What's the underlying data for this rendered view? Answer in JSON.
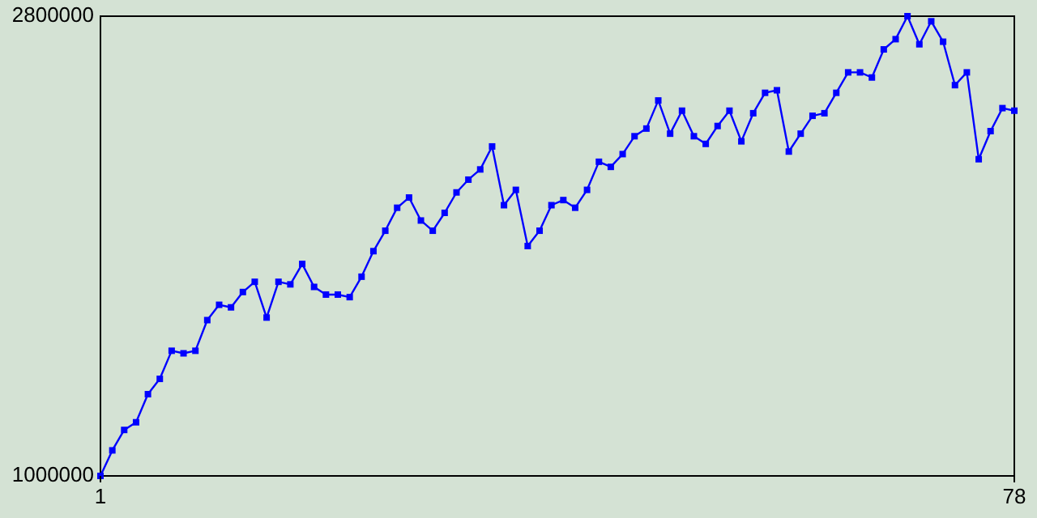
{
  "chart_data": {
    "type": "line",
    "x": [
      1,
      2,
      3,
      4,
      5,
      6,
      7,
      8,
      9,
      10,
      11,
      12,
      13,
      14,
      15,
      16,
      17,
      18,
      19,
      20,
      21,
      22,
      23,
      24,
      25,
      26,
      27,
      28,
      29,
      30,
      31,
      32,
      33,
      34,
      35,
      36,
      37,
      38,
      39,
      40,
      41,
      42,
      43,
      44,
      45,
      46,
      47,
      48,
      49,
      50,
      51,
      52,
      53,
      54,
      55,
      56,
      57,
      58,
      59,
      60,
      61,
      62,
      63,
      64,
      65,
      66,
      67,
      68,
      69,
      70,
      71,
      72,
      73,
      74,
      75,
      76,
      77,
      78
    ],
    "series": [
      {
        "color": "#0000ff",
        "values": [
          1000000,
          1100000,
          1180000,
          1210000,
          1320000,
          1380000,
          1490000,
          1480000,
          1490000,
          1610000,
          1670000,
          1660000,
          1720000,
          1760000,
          1620000,
          1760000,
          1750000,
          1830000,
          1740000,
          1710000,
          1710000,
          1700000,
          1780000,
          1880000,
          1960000,
          2050000,
          2090000,
          2000000,
          1960000,
          2030000,
          2110000,
          2160000,
          2200000,
          2290000,
          2060000,
          2120000,
          1900000,
          1960000,
          2060000,
          2080000,
          2050000,
          2120000,
          2230000,
          2210000,
          2260000,
          2330000,
          2360000,
          2470000,
          2340000,
          2430000,
          2330000,
          2300000,
          2370000,
          2430000,
          2310000,
          2420000,
          2500000,
          2510000,
          2270000,
          2340000,
          2410000,
          2420000,
          2500000,
          2580000,
          2580000,
          2560000,
          2670000,
          2710000,
          2800000,
          2690000,
          2780000,
          2700000,
          2530000,
          2580000,
          2240000,
          2350000,
          2440000,
          2430000
        ]
      }
    ],
    "xlim": [
      1,
      78
    ],
    "xticks": [
      1,
      78
    ],
    "ylim": [
      1000000,
      2800000
    ],
    "yticks": [
      1000000,
      2800000
    ],
    "marker": "square",
    "line_style": "solid"
  }
}
